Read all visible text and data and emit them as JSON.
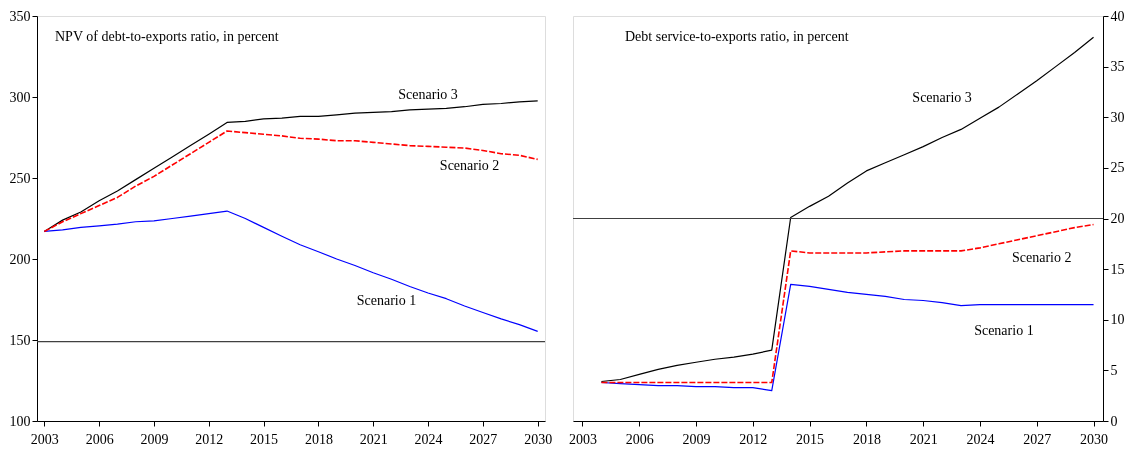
{
  "chart_data": [
    {
      "type": "line",
      "title": "NPV of debt-to-exports ratio, in percent",
      "x": [
        2003,
        2004,
        2005,
        2006,
        2007,
        2008,
        2009,
        2010,
        2011,
        2012,
        2013,
        2014,
        2015,
        2016,
        2017,
        2018,
        2019,
        2020,
        2021,
        2022,
        2023,
        2024,
        2025,
        2026,
        2027,
        2028,
        2029,
        2030
      ],
      "series": [
        {
          "name": "Scenario 3",
          "color": "#000000",
          "line_style": "solid",
          "values": [
            217,
            224,
            229,
            236,
            242,
            249,
            256,
            263,
            270,
            277,
            284.3,
            285,
            286.5,
            287,
            288,
            288,
            289,
            290,
            290.5,
            291,
            292,
            292.5,
            293,
            294,
            295.5,
            296,
            297,
            297.6
          ]
        },
        {
          "name": "Scenario 2",
          "color": "#ff0000",
          "line_style": "dashed",
          "values": [
            217,
            223,
            228,
            233,
            238,
            245,
            251,
            258,
            265,
            272,
            279,
            278,
            277,
            276,
            274.5,
            274,
            273,
            273,
            272,
            271,
            270,
            269.5,
            269,
            268.5,
            267,
            265,
            264,
            261.5
          ]
        },
        {
          "name": "Scenario 1",
          "color": "#0000ff",
          "line_style": "solid",
          "values": [
            217,
            218,
            219.5,
            220.5,
            221.5,
            223,
            223.5,
            225,
            226.5,
            228,
            229.6,
            225,
            219.5,
            214,
            208.8,
            204.5,
            200,
            196,
            191.5,
            187.5,
            183,
            179,
            175.5,
            171,
            167,
            163,
            159.5,
            155.3
          ]
        }
      ],
      "xlim": [
        2002.6,
        2030.4
      ],
      "xticks": [
        2003,
        2006,
        2009,
        2012,
        2015,
        2018,
        2021,
        2024,
        2027,
        2030
      ],
      "ylim": [
        100,
        350
      ],
      "yticks": [
        100,
        150,
        200,
        250,
        300,
        350
      ],
      "ref_lines": [
        {
          "axis": "y",
          "value": 149,
          "color": "#404040"
        }
      ],
      "grid": false
    },
    {
      "type": "line",
      "title": "Debt service-to-exports ratio, in percent",
      "x": [
        2004,
        2005,
        2006,
        2007,
        2008,
        2009,
        2010,
        2011,
        2012,
        2013,
        2014,
        2015,
        2016,
        2017,
        2018,
        2019,
        2020,
        2021,
        2022,
        2023,
        2024,
        2025,
        2026,
        2027,
        2028,
        2029,
        2030
      ],
      "series": [
        {
          "name": "Scenario 3",
          "color": "#000000",
          "line_style": "solid",
          "values": [
            3.9,
            4.1,
            4.6,
            5.1,
            5.5,
            5.8,
            6.1,
            6.3,
            6.6,
            7.0,
            20.1,
            21.2,
            22.2,
            23.5,
            24.7,
            25.5,
            26.3,
            27.1,
            28,
            28.8,
            29.9,
            31,
            32.3,
            33.6,
            35,
            36.4,
            37.9
          ]
        },
        {
          "name": "Scenario 2",
          "color": "#ff0000",
          "line_style": "dashed",
          "values": [
            3.8,
            3.8,
            3.8,
            3.8,
            3.8,
            3.8,
            3.8,
            3.8,
            3.8,
            3.8,
            16.8,
            16.6,
            16.6,
            16.6,
            16.6,
            16.7,
            16.8,
            16.8,
            16.8,
            16.8,
            17.1,
            17.5,
            17.9,
            18.3,
            18.7,
            19.1,
            19.4
          ]
        },
        {
          "name": "Scenario 1",
          "color": "#0000ff",
          "line_style": "solid",
          "values": [
            3.8,
            3.7,
            3.6,
            3.5,
            3.5,
            3.4,
            3.4,
            3.3,
            3.3,
            3.0,
            13.5,
            13.3,
            13.0,
            12.7,
            12.5,
            12.3,
            12.0,
            11.9,
            11.7,
            11.4,
            11.5,
            11.5,
            11.5,
            11.5,
            11.5,
            11.5,
            11.5
          ]
        }
      ],
      "xlim": [
        2002.5,
        2030.5
      ],
      "xticks": [
        2003,
        2006,
        2009,
        2012,
        2015,
        2018,
        2021,
        2024,
        2027,
        2030
      ],
      "ylim": [
        0,
        40
      ],
      "yticks": [
        0,
        5,
        10,
        15,
        20,
        25,
        30,
        35,
        40
      ],
      "ref_lines": [
        {
          "axis": "y",
          "value": 20,
          "color": "#404040"
        }
      ],
      "grid": false
    }
  ]
}
